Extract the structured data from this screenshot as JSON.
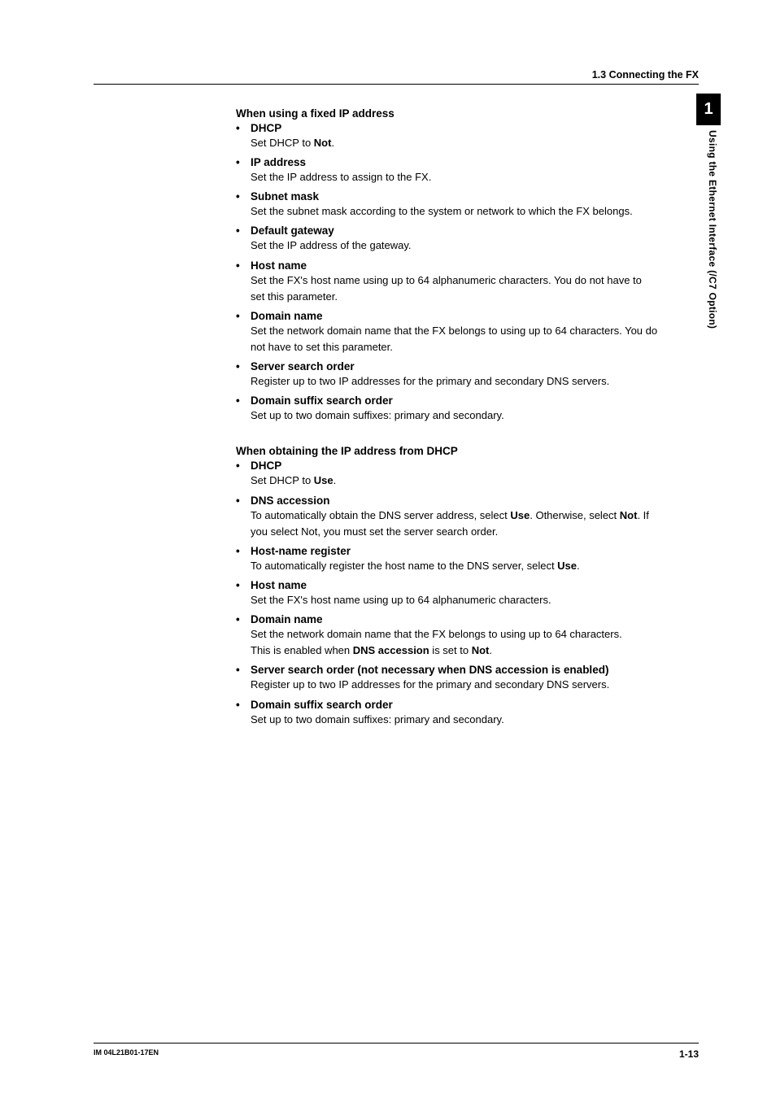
{
  "header": {
    "section_title": "1.3  Connecting the FX"
  },
  "side_tab": {
    "number": "1",
    "text": "Using the Ethernet Interface (/C7 Option)"
  },
  "section1": {
    "heading": "When using a fixed IP address",
    "items": [
      {
        "title": "DHCP",
        "desc_pre": "Set DHCP to ",
        "desc_bold": "Not",
        "desc_post": "."
      },
      {
        "title": "IP address",
        "desc": "Set the IP address to assign to the FX."
      },
      {
        "title": "Subnet mask",
        "desc": "Set the subnet mask according to the system or network to which the FX belongs."
      },
      {
        "title": "Default gateway",
        "desc": "Set the IP address of the gateway."
      },
      {
        "title": "Host name",
        "desc": "Set the FX's host name using up to 64 alphanumeric characters. You do not have to set this parameter."
      },
      {
        "title": "Domain name",
        "desc": "Set the network domain name that the FX belongs to using up to 64 characters. You do not have to set this parameter."
      },
      {
        "title": "Server search order",
        "desc": "Register up to two IP addresses for the primary and secondary DNS servers."
      },
      {
        "title": "Domain suffix search order",
        "desc": "Set up to two domain suffixes: primary and secondary."
      }
    ]
  },
  "section2": {
    "heading": "When obtaining the IP address from DHCP",
    "items": [
      {
        "title": "DHCP",
        "desc_pre": "Set DHCP to ",
        "desc_bold": "Use",
        "desc_post": "."
      },
      {
        "title": "DNS accession",
        "desc_pre": "To automatically obtain the DNS server address, select ",
        "desc_bold": "Use",
        "desc_mid": ". Otherwise, select ",
        "desc_bold2": "Not",
        "desc_post": ". If you select Not, you must set the server search order."
      },
      {
        "title": "Host-name register",
        "desc_pre": "To automatically register the host name to the DNS server, select ",
        "desc_bold": "Use",
        "desc_post": "."
      },
      {
        "title": "Host name",
        "desc": "Set the FX's host name using up to 64 alphanumeric characters."
      },
      {
        "title": "Domain name",
        "desc_line1": "Set the network domain name that the FX belongs to using up to 64 characters.",
        "desc_pre": "This is enabled when ",
        "desc_bold": "DNS accession",
        "desc_mid": " is set to ",
        "desc_bold2": "Not",
        "desc_post": "."
      },
      {
        "title": "Server search order (not necessary when DNS accession is enabled)",
        "desc": "Register up to two IP addresses for the primary and secondary DNS servers."
      },
      {
        "title": "Domain suffix search order",
        "desc": "Set up to two domain suffixes: primary and secondary."
      }
    ]
  },
  "footer": {
    "left": "IM 04L21B01-17EN",
    "right": "1-13"
  }
}
